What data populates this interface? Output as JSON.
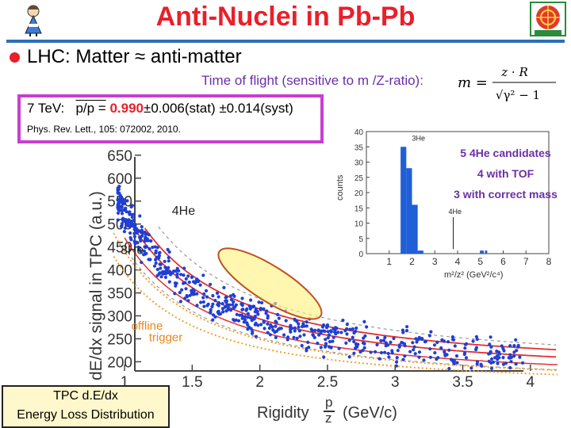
{
  "title": "Anti-Nuclei in Pb-Pb",
  "bullet": "LHC: Matter ≈ anti-matter",
  "tof_text": "Time of flight (sensitive to m /Z-ratio):",
  "formula": {
    "lhs": "m =",
    "numerator": "z · R",
    "denominator": "√γ² − 1"
  },
  "result": {
    "prefix": "7 TeV:",
    "ratio_symbol": "p/p =",
    "value": "0.990",
    "errors": "±0.006(stat) ±0.014(syst)",
    "reference": "Phys. Rev. Lett., 105: 072002, 2010."
  },
  "candidates": [
    "5 4He candidates",
    "4 with TOF",
    "3 with correct mass"
  ],
  "tpc_box": [
    "TPC   d.E/dx",
    "Energy Loss Distribution"
  ],
  "colors": {
    "title": "#e8202a",
    "rule": "#2d6fb8",
    "accent": "#6a2fa6",
    "box": "#c63fd0",
    "points": "#1f3fd6",
    "bars": "#1f5fd8"
  },
  "chart_data": [
    {
      "type": "scatter",
      "title": "",
      "xlabel": "Rigidity",
      "xlabel_fraction": {
        "num": "p",
        "den": "z"
      },
      "xlabel_unit": "(GeV/c)",
      "ylabel": "dE/dx signal in TPC (a.u.)",
      "xlim": [
        0.9,
        4.3
      ],
      "ylim": [
        180,
        660
      ],
      "xticks": [
        "1",
        "1.5",
        "2",
        "2.5",
        "3",
        "3.5",
        "4"
      ],
      "yticks": [
        "200",
        "250",
        "300",
        "350",
        "400",
        "450",
        "500",
        "550",
        "600",
        "650"
      ],
      "curve_labels": [
        {
          "text": "4He",
          "x": 1.35,
          "y": 520
        },
        {
          "text": "3He",
          "x": 0.97,
          "y": 435
        }
      ],
      "annotations": [
        {
          "text": "offline",
          "x": 1.05,
          "y": 270
        },
        {
          "text": "trigger",
          "x": 1.18,
          "y": 245
        }
      ],
      "highlight_ellipse": {
        "x1": 1.7,
        "y1": 440,
        "x2": 2.45,
        "y2": 300
      }
    },
    {
      "type": "bar",
      "xlabel": "m²/z² (GeV²/c⁴)",
      "ylabel": "counts",
      "xlim": [
        0,
        8
      ],
      "ylim": [
        0,
        40
      ],
      "xticks": [
        "1",
        "2",
        "3",
        "4",
        "5",
        "6",
        "7",
        "8"
      ],
      "yticks": [
        "0",
        "5",
        "10",
        "15",
        "20",
        "25",
        "30",
        "35",
        "40"
      ],
      "bins": [
        {
          "x0": 1.5,
          "x1": 1.75,
          "count": 35
        },
        {
          "x0": 1.75,
          "x1": 2.0,
          "count": 28
        },
        {
          "x0": 2.0,
          "x1": 2.25,
          "count": 16
        },
        {
          "x0": 2.25,
          "x1": 2.5,
          "count": 1
        },
        {
          "x0": 5.0,
          "x1": 5.15,
          "count": 1
        },
        {
          "x0": 5.2,
          "x1": 5.3,
          "count": 1
        }
      ],
      "labels": [
        {
          "text": "3He",
          "x": 2.0,
          "y": 37
        },
        {
          "text": "4He",
          "x": 3.6,
          "y": 13
        }
      ]
    }
  ]
}
